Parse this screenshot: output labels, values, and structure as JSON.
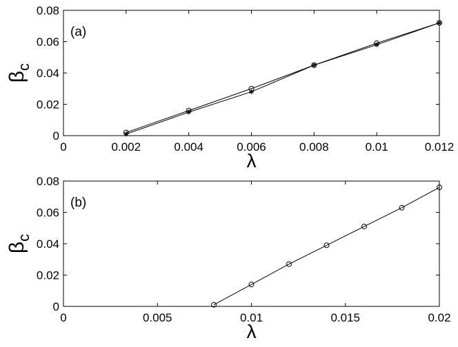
{
  "chart_data": [
    {
      "type": "line",
      "annotation": "(a)",
      "x_label": "λ",
      "y_label": "β",
      "y_label_sub": "c",
      "xlim": [
        0,
        0.012
      ],
      "xticks": [
        0,
        0.002,
        0.004,
        0.006,
        0.008,
        0.01,
        0.012
      ],
      "ylim": [
        0,
        0.08
      ],
      "yticks": [
        0,
        0.02,
        0.04,
        0.06,
        0.08
      ],
      "x": [
        0.002,
        0.004,
        0.006,
        0.008,
        0.01,
        0.012
      ],
      "series": [
        {
          "color": "#000000",
          "marker": "o",
          "values": [
            0.002,
            0.016,
            0.03,
            0.045,
            0.059,
            0.072
          ]
        },
        {
          "color": "#000000",
          "marker": "*",
          "values": [
            0.001,
            0.015,
            0.028,
            0.045,
            0.058,
            0.072
          ]
        }
      ]
    },
    {
      "type": "line",
      "annotation": "(b)",
      "x_label": "λ",
      "y_label": "β",
      "y_label_sub": "c",
      "xlim": [
        0,
        0.02
      ],
      "xticks": [
        0,
        0.005,
        0.01,
        0.015,
        0.02
      ],
      "ylim": [
        0,
        0.08
      ],
      "yticks": [
        0,
        0.02,
        0.04,
        0.06,
        0.08
      ],
      "x": [
        0.008,
        0.01,
        0.012,
        0.014,
        0.016,
        0.018,
        0.02
      ],
      "series": [
        {
          "color": "#000000",
          "marker": "o",
          "values": [
            0.001,
            0.014,
            0.027,
            0.039,
            0.051,
            0.063,
            0.076
          ]
        }
      ]
    }
  ]
}
